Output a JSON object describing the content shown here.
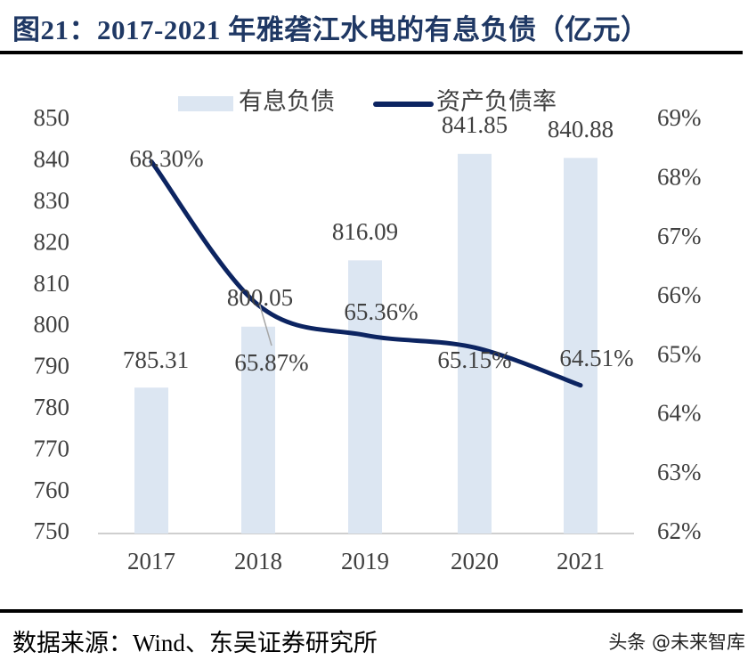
{
  "title": "图21：2017-2021 年雅砻江水电的有息负债（亿元）",
  "source": "数据来源：Wind、东吴证券研究所",
  "watermark": "头条 @未来智库",
  "chart_data": {
    "type": "bar+line",
    "categories": [
      "2017",
      "2018",
      "2019",
      "2020",
      "2021"
    ],
    "series": [
      {
        "name": "有息负债",
        "type": "bar",
        "axis": "left",
        "values": [
          785.31,
          800.05,
          816.09,
          841.85,
          840.88
        ],
        "labels": [
          "785.31",
          "800.05",
          "816.09",
          "841.85",
          "840.88"
        ],
        "color": "#dce6f2"
      },
      {
        "name": "资产负债率",
        "type": "line",
        "axis": "right",
        "values": [
          68.3,
          65.87,
          65.36,
          65.15,
          64.51
        ],
        "labels": [
          "68.30%",
          "65.87%",
          "65.36%",
          "65.15%",
          "64.51%"
        ],
        "color": "#0c2461"
      }
    ],
    "left_axis": {
      "ylim": [
        750,
        850
      ],
      "ticks": [
        "750",
        "760",
        "770",
        "780",
        "790",
        "800",
        "810",
        "820",
        "830",
        "840",
        "850"
      ]
    },
    "right_axis": {
      "ylim": [
        62,
        69
      ],
      "ticks": [
        "62%",
        "63%",
        "64%",
        "65%",
        "66%",
        "67%",
        "68%",
        "69%"
      ]
    },
    "legend": "top",
    "grid": false
  }
}
